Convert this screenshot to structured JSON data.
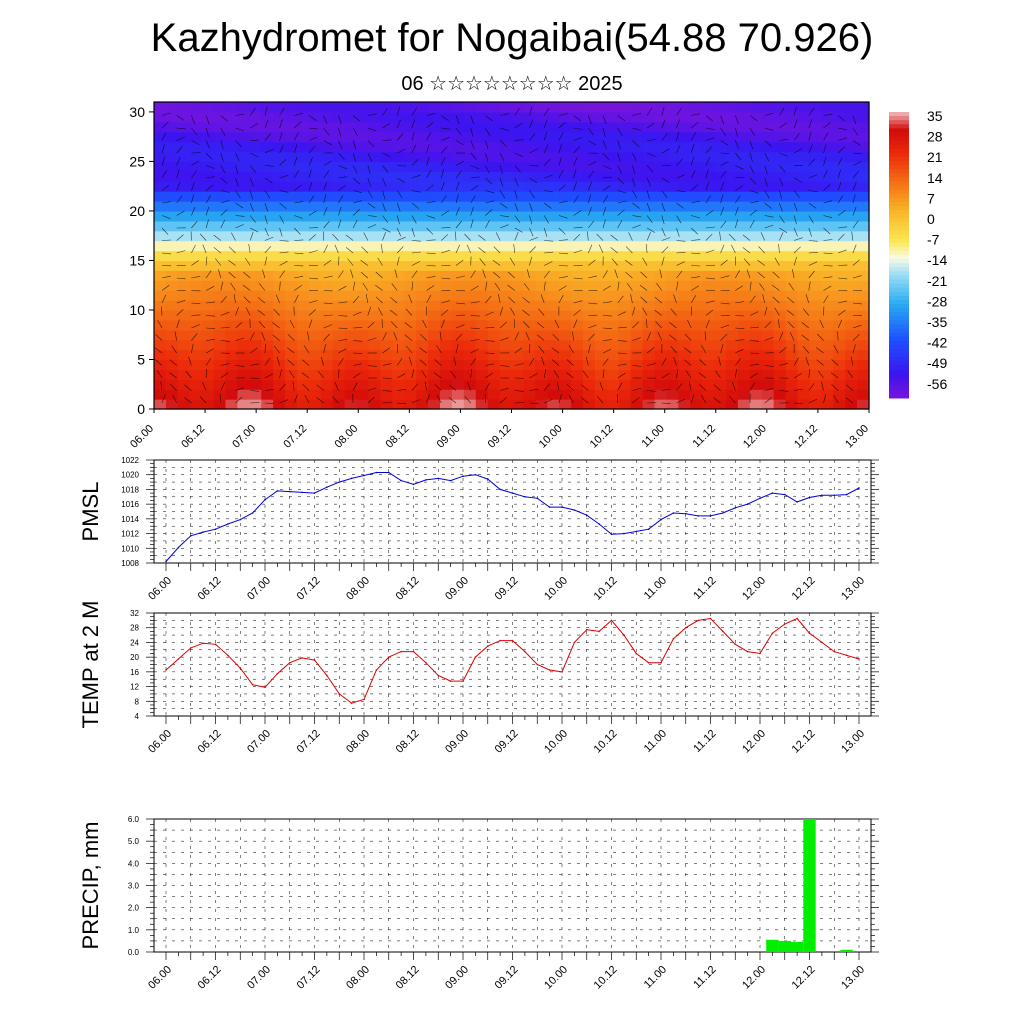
{
  "title": "Kazhydromet for Nogaibai(54.88 70.926)",
  "subtitle": "06 ☆☆☆☆☆☆☆☆ 2025",
  "x_labels": [
    "06.00",
    "06.12",
    "07.00",
    "07.12",
    "08.00",
    "08.12",
    "09.00",
    "09.12",
    "10.00",
    "10.12",
    "11.00",
    "11.12",
    "12.00",
    "12.12",
    "13.00"
  ],
  "colors": {
    "pmsl": "#0000dd",
    "temp": "#dd0000",
    "precip": "#00ee00",
    "frame": "#000000",
    "grid": "#777777"
  },
  "chart_data": [
    {
      "type": "heatmap",
      "title": "",
      "ylim": [
        0,
        31
      ],
      "y_ticks": [
        0,
        5,
        10,
        15,
        20,
        25,
        30
      ],
      "colorbar_labels": [
        "35",
        "28",
        "21",
        "14",
        "7",
        "0",
        "-7",
        "-14",
        "-21",
        "-28",
        "-35",
        "-42",
        "-49",
        "-56"
      ],
      "colorbar_range": [
        -60,
        38
      ],
      "overlay": "wind barbs",
      "description_values": "temperature field by level and time; warm near surface, cold above level 22"
    },
    {
      "type": "line",
      "ylabel": "PMSL",
      "ylim": [
        1008,
        1022
      ],
      "y_ticks": [
        1008,
        1010,
        1012,
        1014,
        1016,
        1018,
        1020,
        1022
      ],
      "x_hours": [
        0,
        3,
        6,
        9,
        12,
        15,
        18,
        21,
        24,
        27,
        30,
        33,
        36,
        39,
        42,
        45,
        48,
        51,
        54,
        57,
        60,
        63,
        66,
        69,
        72,
        75,
        78,
        81,
        84,
        87,
        90,
        93,
        96,
        99,
        102,
        105,
        108,
        111,
        114,
        117,
        120,
        123,
        126,
        129,
        132,
        135,
        138,
        141,
        144,
        147,
        150,
        153,
        156,
        159,
        162,
        165,
        168
      ],
      "values": [
        1008.2,
        1010.1,
        1011.7,
        1012.2,
        1012.6,
        1013.3,
        1013.9,
        1014.8,
        1016.6,
        1017.8,
        1017.7,
        1017.6,
        1017.5,
        1018.3,
        1019.0,
        1019.5,
        1019.9,
        1020.3,
        1020.3,
        1019.2,
        1018.7,
        1019.3,
        1019.5,
        1019.2,
        1019.8,
        1020.0,
        1019.4,
        1018.0,
        1017.5,
        1017.0,
        1016.8,
        1015.6,
        1015.6,
        1015.2,
        1014.5,
        1013.3,
        1011.9,
        1012.0,
        1012.3,
        1012.6,
        1013.9,
        1014.8,
        1014.7,
        1014.4,
        1014.4,
        1014.8,
        1015.5,
        1016.0,
        1016.8,
        1017.5,
        1017.3,
        1016.3,
        1016.9,
        1017.2,
        1017.2,
        1017.3,
        1018.2
      ]
    },
    {
      "type": "line",
      "ylabel": "TEMP at 2 M",
      "ylim": [
        4,
        32
      ],
      "y_ticks": [
        4,
        8,
        12,
        16,
        20,
        24,
        28,
        32
      ],
      "x_hours": [
        0,
        3,
        6,
        9,
        12,
        15,
        18,
        21,
        24,
        27,
        30,
        33,
        36,
        39,
        42,
        45,
        48,
        51,
        54,
        57,
        60,
        63,
        66,
        69,
        72,
        75,
        78,
        81,
        84,
        87,
        90,
        93,
        96,
        99,
        102,
        105,
        108,
        111,
        114,
        117,
        120,
        123,
        126,
        129,
        132,
        135,
        138,
        141,
        144,
        147,
        150,
        153,
        156,
        159,
        162,
        165,
        168
      ],
      "values": [
        16.5,
        19.5,
        22.5,
        23.8,
        23.5,
        20.5,
        17.0,
        12.5,
        11.8,
        15.5,
        18.5,
        19.8,
        19.2,
        15.0,
        10.0,
        7.5,
        8.5,
        16.5,
        20.0,
        21.5,
        21.5,
        18.5,
        15.0,
        13.5,
        13.5,
        20.0,
        23.0,
        24.5,
        24.5,
        21.5,
        18.0,
        16.5,
        16.0,
        24.0,
        27.5,
        27.0,
        30.0,
        26.0,
        21.0,
        18.5,
        18.5,
        25.0,
        28.0,
        30.0,
        30.5,
        27.0,
        23.5,
        21.5,
        21.0,
        26.5,
        29.0,
        30.5,
        26.5,
        24.0,
        21.5,
        20.5,
        19.5
      ]
    },
    {
      "type": "bar",
      "ylabel": "PRECIP, mm",
      "ylim": [
        0,
        6
      ],
      "y_ticks": [
        "0.0",
        "1.0",
        "2.0",
        "3.0",
        "4.0",
        "5.0",
        "6.0"
      ],
      "x_hours": [
        147,
        150,
        153,
        156,
        165
      ],
      "values": [
        0.55,
        0.5,
        0.45,
        6.0,
        0.1
      ]
    }
  ]
}
